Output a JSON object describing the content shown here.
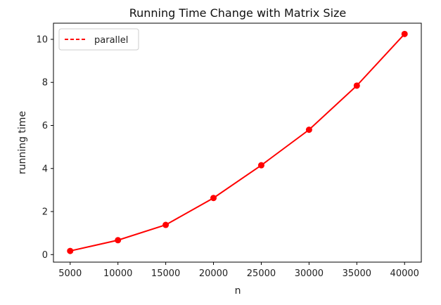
{
  "chart_data": {
    "type": "line",
    "title": "Running Time Change with Matrix Size",
    "xlabel": "n",
    "ylabel": "running time",
    "x": [
      5000,
      10000,
      15000,
      20000,
      25000,
      30000,
      35000,
      40000
    ],
    "xticks": [
      5000,
      10000,
      15000,
      20000,
      25000,
      30000,
      35000,
      40000
    ],
    "yticks": [
      0,
      2,
      4,
      6,
      8,
      10
    ],
    "xlim": [
      3250,
      41750
    ],
    "ylim": [
      -0.35,
      10.75
    ],
    "grid": false,
    "legend": {
      "placement": "top-left",
      "style": "dashed"
    },
    "series": [
      {
        "name": "parallel",
        "color": "#ff0000",
        "marker": "circle",
        "values": [
          0.17,
          0.67,
          1.38,
          2.63,
          4.15,
          5.8,
          7.85,
          10.25
        ]
      }
    ]
  }
}
